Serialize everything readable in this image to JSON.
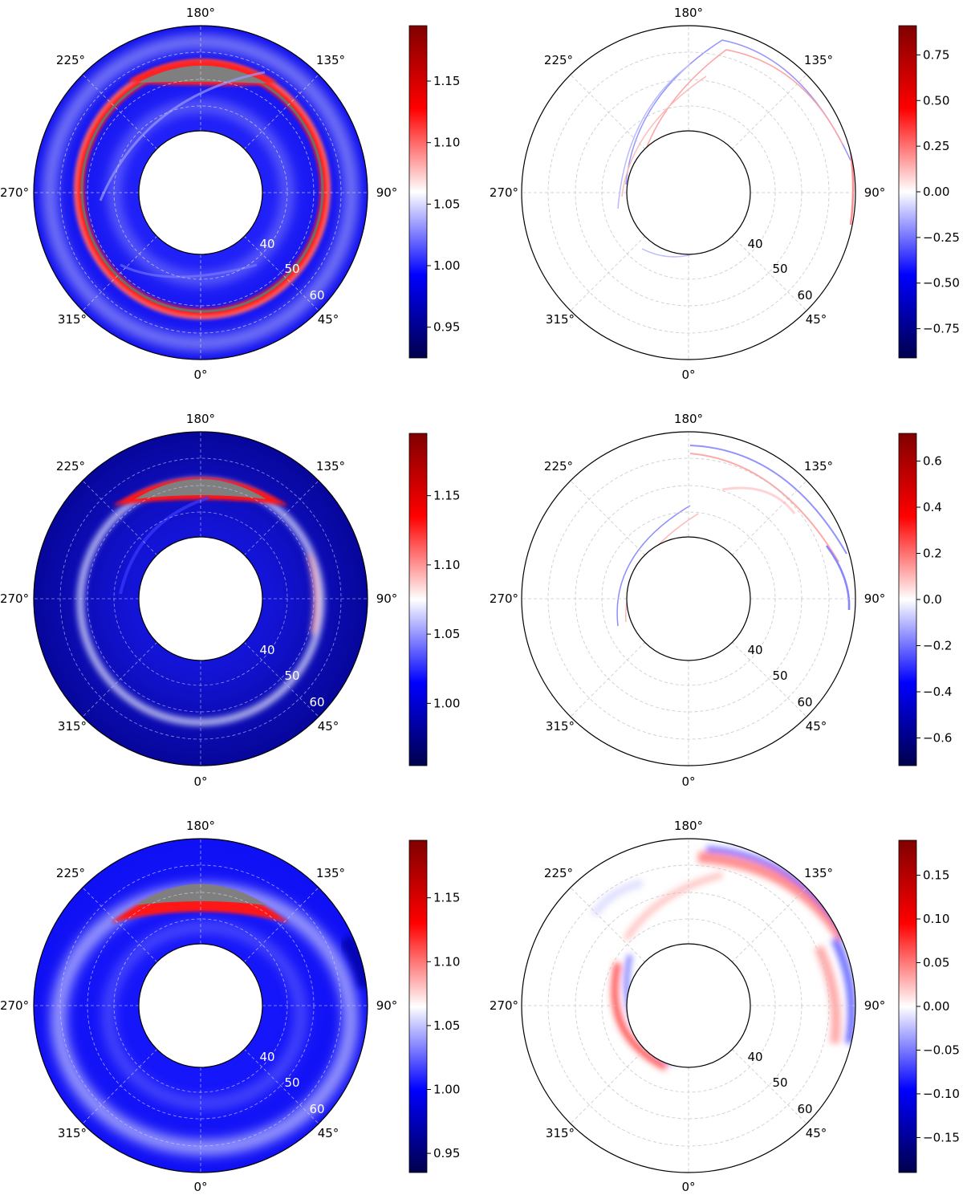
{
  "chart_data": [
    {
      "type": "heatmap",
      "projection": "polar",
      "theta_labels": [
        "180°",
        "135°",
        "90°",
        "45°",
        "0°",
        "315°",
        "270°",
        "225°"
      ],
      "radial_labels": [
        "40",
        "50",
        "60"
      ],
      "colorbar_ticks": [
        "1.15",
        "1.10",
        "1.05",
        "1.00",
        "0.95"
      ],
      "colorbar_values": [
        1.15,
        1.1,
        1.05,
        1.0,
        0.95
      ],
      "colorbar_range": [
        0.925,
        1.195
      ],
      "colormap": "seismic"
    },
    {
      "type": "heatmap",
      "projection": "polar",
      "theta_labels": [
        "180°",
        "135°",
        "90°",
        "45°",
        "0°",
        "315°",
        "270°",
        "225°"
      ],
      "radial_labels": [
        "40",
        "50",
        "60"
      ],
      "colorbar_ticks": [
        "0.75",
        "0.50",
        "0.25",
        "0.00",
        "−0.25",
        "−0.50",
        "−0.75"
      ],
      "colorbar_values": [
        0.75,
        0.5,
        0.25,
        0.0,
        -0.25,
        -0.5,
        -0.75
      ],
      "colorbar_range": [
        -0.91,
        0.91
      ],
      "colormap": "seismic"
    },
    {
      "type": "heatmap",
      "projection": "polar",
      "theta_labels": [
        "180°",
        "135°",
        "90°",
        "45°",
        "0°",
        "315°",
        "270°",
        "225°"
      ],
      "radial_labels": [
        "40",
        "50",
        "60"
      ],
      "colorbar_ticks": [
        "1.15",
        "1.10",
        "1.05",
        "1.00"
      ],
      "colorbar_values": [
        1.15,
        1.1,
        1.05,
        1.0
      ],
      "colorbar_range": [
        0.955,
        1.195
      ],
      "colormap": "seismic"
    },
    {
      "type": "heatmap",
      "projection": "polar",
      "theta_labels": [
        "180°",
        "135°",
        "90°",
        "45°",
        "0°",
        "315°",
        "270°",
        "225°"
      ],
      "radial_labels": [
        "40",
        "50",
        "60"
      ],
      "colorbar_ticks": [
        "0.6",
        "0.4",
        "0.2",
        "0.0",
        "−0.2",
        "−0.4",
        "−0.6"
      ],
      "colorbar_values": [
        0.6,
        0.4,
        0.2,
        0.0,
        -0.2,
        -0.4,
        -0.6
      ],
      "colorbar_range": [
        -0.72,
        0.72
      ],
      "colormap": "seismic"
    },
    {
      "type": "heatmap",
      "projection": "polar",
      "theta_labels": [
        "180°",
        "135°",
        "90°",
        "45°",
        "0°",
        "315°",
        "270°",
        "225°"
      ],
      "radial_labels": [
        "40",
        "50",
        "60"
      ],
      "colorbar_ticks": [
        "1.15",
        "1.10",
        "1.05",
        "1.00",
        "0.95"
      ],
      "colorbar_values": [
        1.15,
        1.1,
        1.05,
        1.0,
        0.95
      ],
      "colorbar_range": [
        0.935,
        1.195
      ],
      "colormap": "seismic"
    },
    {
      "type": "heatmap",
      "projection": "polar",
      "theta_labels": [
        "180°",
        "135°",
        "90°",
        "45°",
        "0°",
        "315°",
        "270°",
        "225°"
      ],
      "radial_labels": [
        "40",
        "50",
        "60"
      ],
      "colorbar_ticks": [
        "0.15",
        "0.10",
        "0.05",
        "0.00",
        "−0.05",
        "−0.10",
        "−0.15"
      ],
      "colorbar_values": [
        0.15,
        0.1,
        0.05,
        0.0,
        -0.05,
        -0.1,
        -0.15
      ],
      "colorbar_range": [
        -0.19,
        0.19
      ],
      "colormap": "seismic"
    }
  ]
}
